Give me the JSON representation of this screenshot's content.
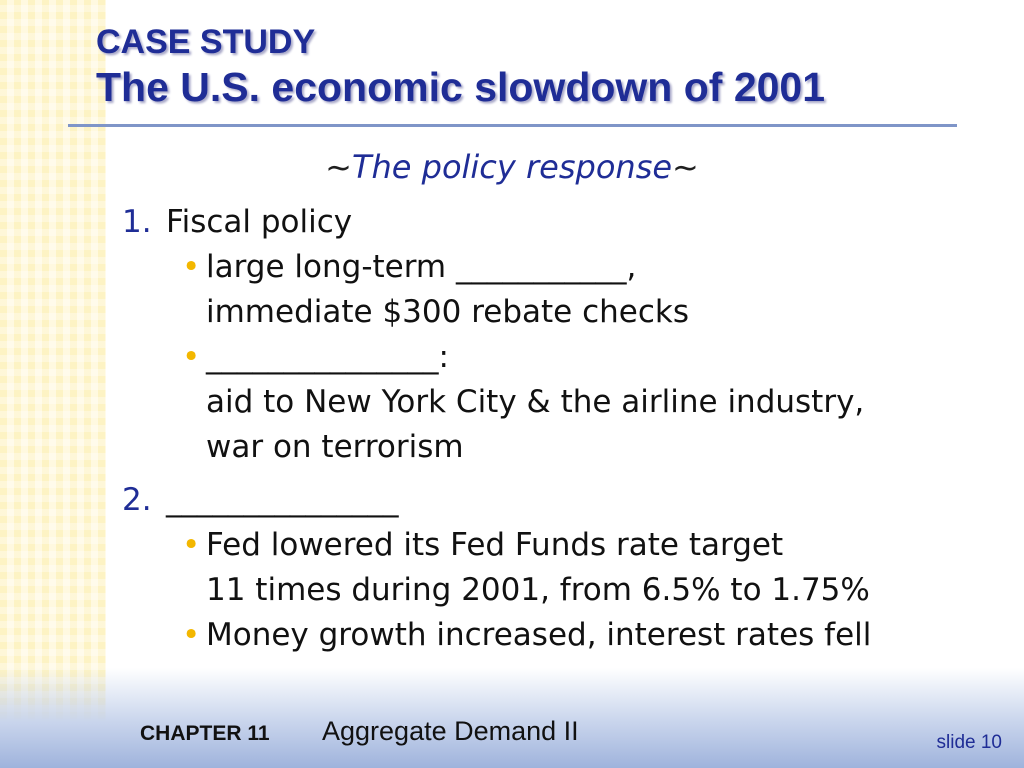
{
  "header": {
    "case_study": "CASE STUDY",
    "title": "The U.S. economic slowdown of 2001"
  },
  "subtitle": {
    "tilde_left": "~",
    "text": "The policy response",
    "tilde_right": "~"
  },
  "items": [
    {
      "number": "1.",
      "label": "Fiscal policy",
      "bullets": [
        "large long-term ___________,\nimmediate $300 rebate checks",
        "_______________:\naid to New York City & the airline industry,\nwar on terrorism"
      ]
    },
    {
      "number": "2.",
      "label": "_______________",
      "bullets": [
        "Fed lowered its Fed Funds rate target\n11 times during 2001, from 6.5% to 1.75%",
        "Money growth increased, interest rates fell"
      ]
    }
  ],
  "footer": {
    "chapter": "CHAPTER 11",
    "chapter_title": "Aggregate Demand II",
    "slide": "slide 10"
  },
  "colors": {
    "title_blue": "#1f2d96",
    "bullet_yellow": "#f3b700",
    "stripe_yellow": "#fdf3c4"
  }
}
